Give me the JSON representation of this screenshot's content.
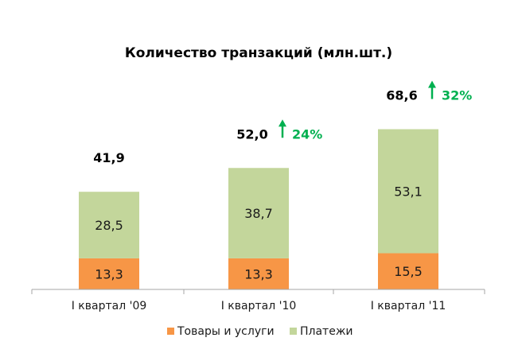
{
  "chart_data": {
    "type": "bar",
    "stacked": true,
    "title": "Количество транзакций (млн.шт.)",
    "categories": [
      "I квартал '09",
      "I квартал '10",
      "I квартал '11"
    ],
    "series": [
      {
        "name": "Товары и услуги",
        "values": [
          13.3,
          13.3,
          15.5
        ],
        "labels": [
          "13,3",
          "13,3",
          "15,5"
        ],
        "color": "#f79646"
      },
      {
        "name": "Платежи",
        "values": [
          28.5,
          38.7,
          53.1
        ],
        "labels": [
          "28,5",
          "38,7",
          "53,1"
        ],
        "color": "#c3d69b"
      }
    ],
    "totals": [
      "41,9",
      "52,0",
      "68,6"
    ],
    "growth": [
      "",
      "24%",
      "32%"
    ],
    "growth_color": "#00b050",
    "growth_icon": "up-arrow-icon",
    "ylim": [
      0,
      80
    ],
    "legend_position": "bottom",
    "grid": false
  }
}
